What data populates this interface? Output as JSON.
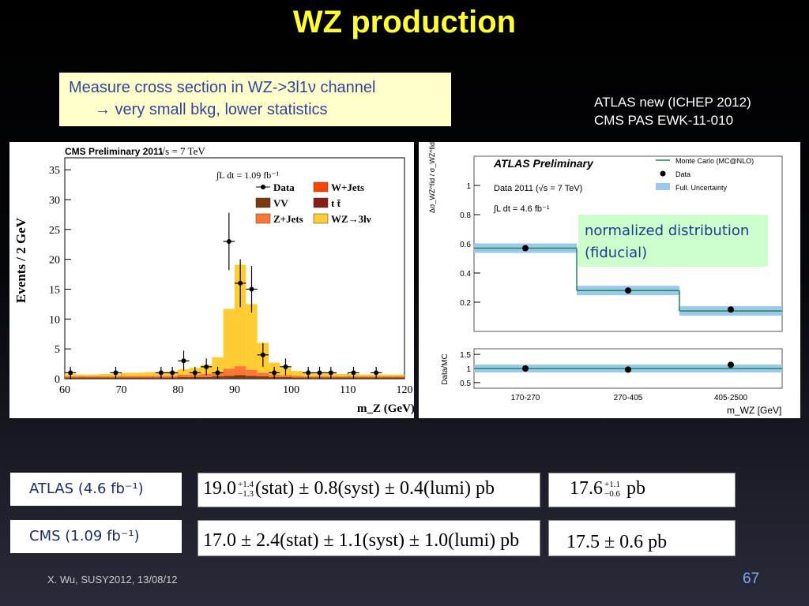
{
  "title": "WZ production",
  "measure": {
    "line1": "Measure cross section in WZ->3l1ν channel",
    "line2": "→ very small bkg, lower statistics"
  },
  "refs": {
    "line1": "ATLAS new (ICHEP 2012)",
    "line2": "CMS PAS EWK-11-010"
  },
  "note": {
    "line1": "normalized distribution",
    "line2": "(fiducial)"
  },
  "rows": [
    {
      "label": "ATLAS (4.6 fb⁻¹)",
      "meas_main": "19.0",
      "meas_sup": "+1.4",
      "meas_sub": "−1.3",
      "meas_rest": "(stat) ± 0.8(syst) ± 0.4(lumi) pb",
      "theory_main": "17.6",
      "theory_sup": "+1.1",
      "theory_sub": "−0.6",
      "theory_rest": "pb"
    },
    {
      "label": "CMS  (1.09 fb⁻¹)",
      "meas_text": "17.0 ± 2.4(stat) ± 1.1(syst) ± 1.0(lumi) pb",
      "theory_text": "17.5 ± 0.6 pb"
    }
  ],
  "footer": "X. Wu, SUSY2012, 13/08/12",
  "page_number": "67",
  "chart_data": [
    {
      "type": "bar",
      "title": "CMS Preliminary 2011",
      "energy_text": "√s = 7 TeV",
      "lumi_text": "∫L dt = 1.09 fb⁻¹",
      "xlabel": "m_Z (GeV)",
      "ylabel": "Events / 2 GeV",
      "xlim": [
        60,
        120
      ],
      "ylim": [
        0,
        37
      ],
      "xticks": [
        60,
        70,
        80,
        90,
        100,
        110,
        120
      ],
      "yticks": [
        0,
        5,
        10,
        15,
        20,
        25,
        30,
        35
      ],
      "legend_entries": [
        {
          "name": "Data",
          "color": "#000000"
        },
        {
          "name": "W+Jets",
          "color": "#ff4400"
        },
        {
          "name": "VV",
          "color": "#7a3a10"
        },
        {
          "name": "t t̄",
          "color": "#8b1a1a"
        },
        {
          "name": "Z+Jets",
          "color": "#ff7733"
        },
        {
          "name": "WZ→3lν",
          "color": "#ffcc33"
        }
      ],
      "categories": [
        61,
        63,
        65,
        67,
        69,
        71,
        73,
        75,
        77,
        79,
        81,
        83,
        85,
        87,
        89,
        91,
        93,
        95,
        97,
        99,
        101,
        103,
        105,
        107,
        109,
        111,
        113,
        115,
        117,
        119
      ],
      "series": [
        {
          "name": "WZ→3lν",
          "values": [
            0.4,
            0.3,
            0.3,
            0.4,
            0.4,
            0.5,
            0.5,
            0.6,
            0.6,
            0.7,
            0.9,
            1.1,
            1.5,
            2.5,
            10,
            17,
            11,
            5,
            2,
            1.2,
            0.8,
            0.6,
            0.5,
            0.5,
            0.4,
            0.4,
            0.3,
            0.3,
            0.3,
            0.3
          ]
        },
        {
          "name": "Z+Jets",
          "values": [
            0.2,
            0.2,
            0.2,
            0.2,
            0.2,
            0.3,
            0.3,
            0.3,
            0.3,
            0.3,
            0.4,
            0.4,
            0.5,
            0.7,
            1.2,
            1.5,
            1.0,
            0.6,
            0.4,
            0.3,
            0.3,
            0.2,
            0.2,
            0.2,
            0.2,
            0.2,
            0.2,
            0.2,
            0.2,
            0.2
          ]
        },
        {
          "name": "VV",
          "values": [
            0.2,
            0.2,
            0.2,
            0.2,
            0.2,
            0.2,
            0.2,
            0.2,
            0.2,
            0.2,
            0.3,
            0.3,
            0.3,
            0.4,
            0.5,
            0.6,
            0.5,
            0.4,
            0.3,
            0.3,
            0.2,
            0.2,
            0.2,
            0.2,
            0.2,
            0.2,
            0.2,
            0.2,
            0.2,
            0.2
          ]
        }
      ],
      "data_points": [
        {
          "x": 61,
          "y": 1,
          "err": 1
        },
        {
          "x": 69,
          "y": 1,
          "err": 1
        },
        {
          "x": 77,
          "y": 1,
          "err": 1
        },
        {
          "x": 79,
          "y": 1,
          "err": 1
        },
        {
          "x": 81,
          "y": 3,
          "err": 1.7
        },
        {
          "x": 83,
          "y": 1,
          "err": 1
        },
        {
          "x": 85,
          "y": 2,
          "err": 1.4
        },
        {
          "x": 87,
          "y": 1,
          "err": 1
        },
        {
          "x": 89,
          "y": 23,
          "err": 4.8
        },
        {
          "x": 91,
          "y": 16,
          "err": 4
        },
        {
          "x": 93,
          "y": 15,
          "err": 3.9
        },
        {
          "x": 95,
          "y": 4,
          "err": 2
        },
        {
          "x": 97,
          "y": 1,
          "err": 1
        },
        {
          "x": 99,
          "y": 2,
          "err": 1.4
        },
        {
          "x": 103,
          "y": 1,
          "err": 1
        },
        {
          "x": 105,
          "y": 1,
          "err": 1
        },
        {
          "x": 107,
          "y": 1,
          "err": 1
        },
        {
          "x": 111,
          "y": 1,
          "err": 1
        },
        {
          "x": 115,
          "y": 1,
          "err": 1
        }
      ]
    },
    {
      "type": "line",
      "title": "ATLAS Preliminary",
      "sub1": "Data 2011 (√s = 7 TeV)",
      "sub2": "∫L dt = 4.6 fb⁻¹",
      "ylabel": "Δσ_WZ^fid / σ_WZ^fid",
      "ratio_ylabel": "Data/MC",
      "xlabel": "m_WZ [GeV]",
      "categories": [
        "170-270",
        "270-405",
        "405-2500"
      ],
      "yticks": [
        "0.2",
        "0.4",
        "0.6",
        "0.8",
        "1"
      ],
      "ratio_yticks": [
        "0.5",
        "1",
        "1.5"
      ],
      "legend_entries": [
        "Monte Carlo (MC@NLO)",
        "Data",
        "Full. Uncertainty"
      ],
      "series": [
        {
          "name": "Monte Carlo (MC@NLO)",
          "values": [
            0.57,
            0.28,
            0.14
          ]
        },
        {
          "name": "Data",
          "values": [
            0.57,
            0.28,
            0.15
          ]
        }
      ],
      "ratio_values": [
        1.0,
        0.96,
        1.13
      ]
    }
  ]
}
